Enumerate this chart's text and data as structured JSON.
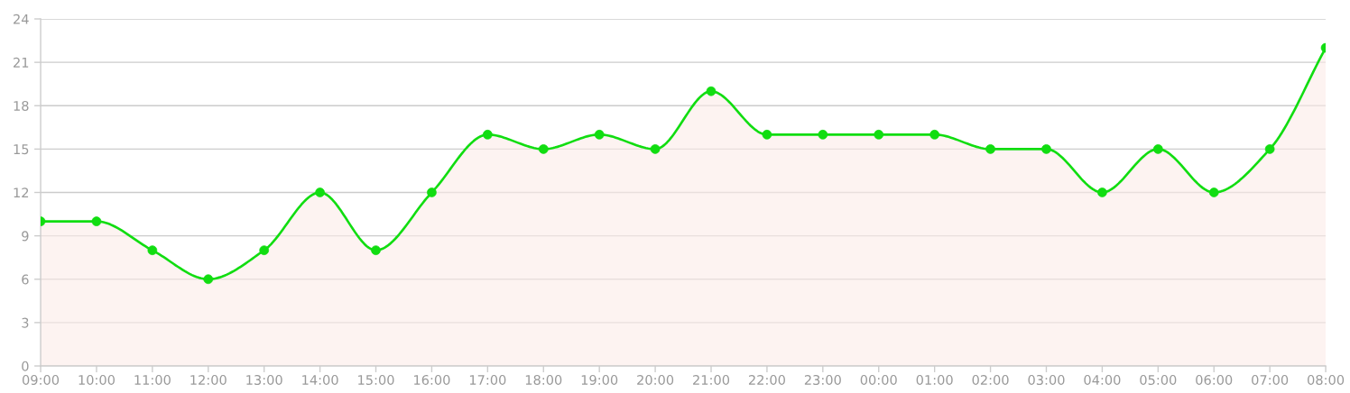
{
  "chart_data": {
    "type": "area",
    "categories": [
      "09:00",
      "10:00",
      "11:00",
      "12:00",
      "13:00",
      "14:00",
      "15:00",
      "16:00",
      "17:00",
      "18:00",
      "19:00",
      "20:00",
      "21:00",
      "22:00",
      "23:00",
      "00:00",
      "01:00",
      "02:00",
      "03:00",
      "04:00",
      "05:00",
      "06:00",
      "07:00",
      "08:00"
    ],
    "series": [
      {
        "color": "#fbebe7",
        "values": [
          10,
          10,
          8,
          6,
          8,
          12,
          8,
          12,
          16,
          15,
          16,
          15,
          19,
          16,
          16,
          16,
          16,
          15,
          15,
          12,
          15,
          12,
          15,
          22
        ]
      }
    ],
    "ylim": [
      0,
      24
    ],
    "yticks": [
      0,
      3,
      6,
      9,
      12,
      15,
      18,
      21,
      24
    ],
    "grid": "y",
    "marker": "circle"
  }
}
